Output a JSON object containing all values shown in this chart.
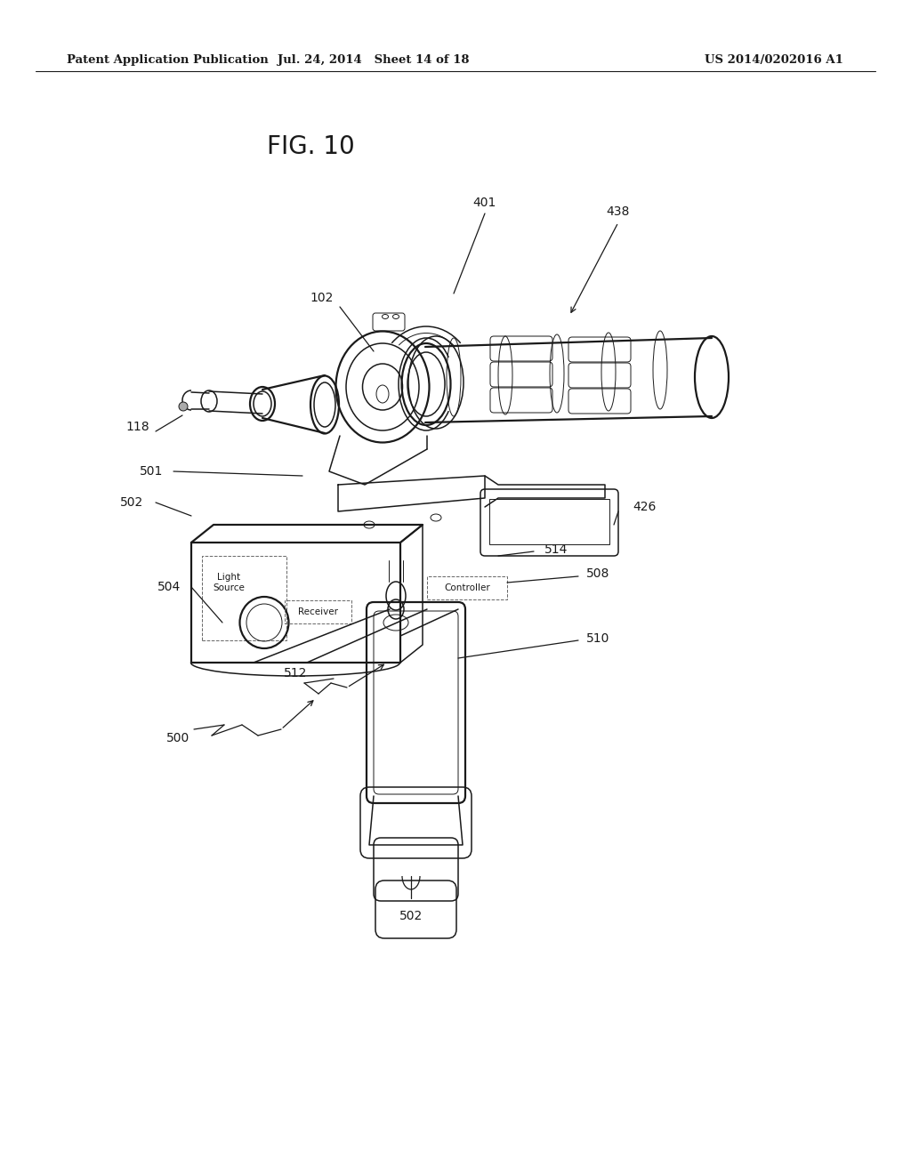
{
  "header_left": "Patent Application Publication",
  "header_mid": "Jul. 24, 2014   Sheet 14 of 18",
  "header_right": "US 2014/0202016 A1",
  "fig_label": "FIG. 10",
  "bg_color": "#ffffff",
  "line_color": "#1a1a1a",
  "label_fontsize": 10,
  "header_fontsize": 9.5
}
